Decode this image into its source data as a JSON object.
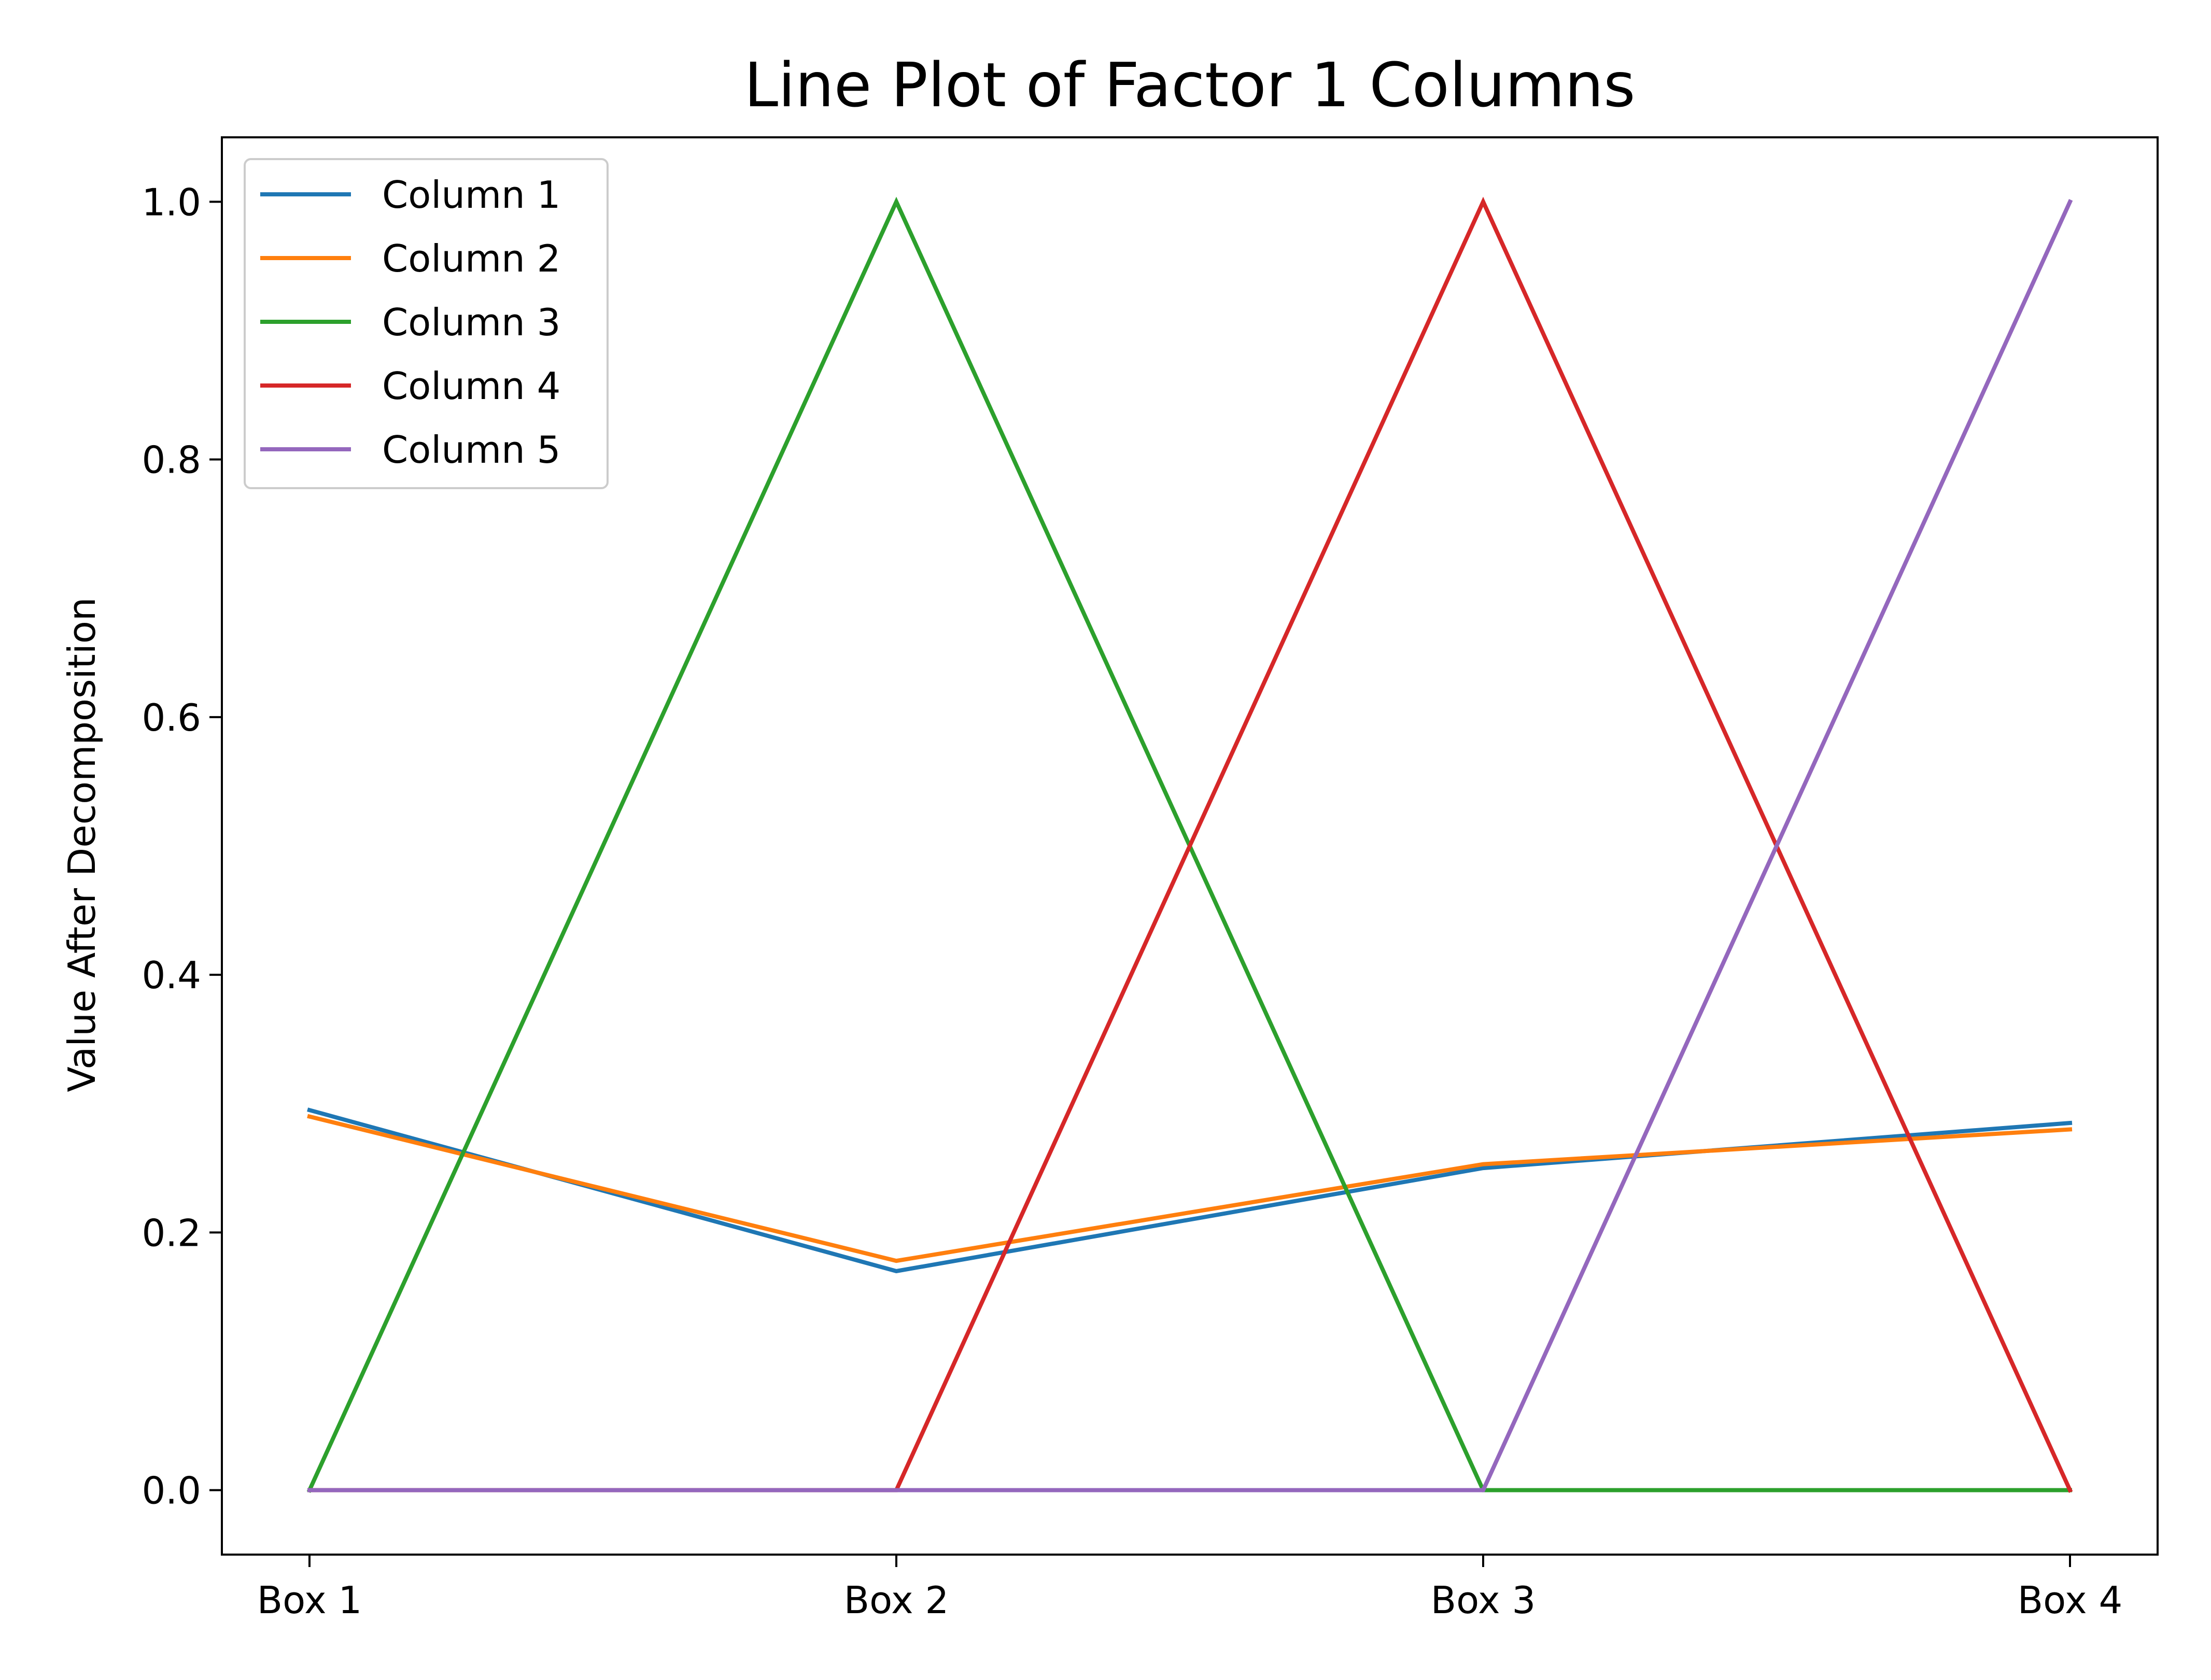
{
  "chart_data": {
    "type": "line",
    "title": "Line Plot of Factor 1 Columns",
    "xlabel": "",
    "ylabel": "Value After Decomposition",
    "categories": [
      "Box 1",
      "Box 2",
      "Box 3",
      "Box 4"
    ],
    "ylim": [
      -0.05,
      1.05
    ],
    "yticks": [
      0.0,
      0.2,
      0.4,
      0.6,
      0.8,
      1.0
    ],
    "ytick_labels": [
      "0.0",
      "0.2",
      "0.4",
      "0.6",
      "0.8",
      "1.0"
    ],
    "grid": false,
    "legend_position": "upper-left",
    "series": [
      {
        "name": "Column 1",
        "color": "#1f77b4",
        "values": [
          0.295,
          0.17,
          0.25,
          0.285
        ]
      },
      {
        "name": "Column 2",
        "color": "#ff7f0e",
        "values": [
          0.29,
          0.178,
          0.253,
          0.28
        ]
      },
      {
        "name": "Column 3",
        "color": "#2ca02c",
        "values": [
          0.0,
          1.0,
          0.0,
          0.0
        ]
      },
      {
        "name": "Column 4",
        "color": "#d62728",
        "values": [
          0.0,
          0.0,
          1.0,
          0.0
        ]
      },
      {
        "name": "Column 5",
        "color": "#9467bd",
        "values": [
          0.0,
          0.0,
          0.0,
          1.0
        ]
      }
    ]
  }
}
